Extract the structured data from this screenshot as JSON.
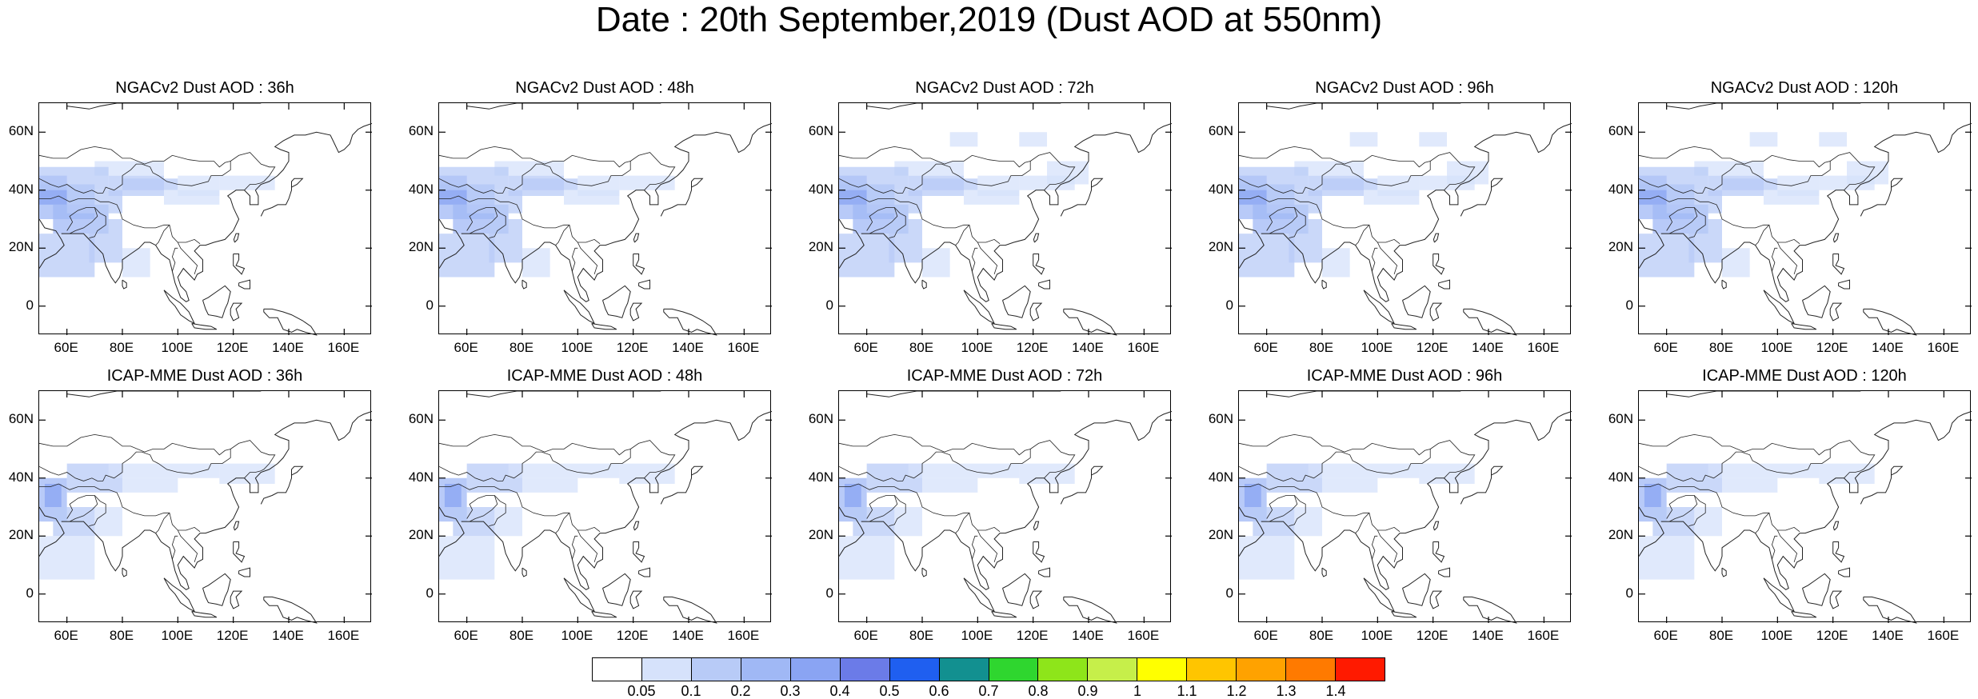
{
  "title": "Date : 20th September,2019 (Dust AOD at 550nm)",
  "panels": [
    {
      "title": "NGACv2 Dust AOD : 36h",
      "model": "NGACv2",
      "lead": "36h"
    },
    {
      "title": "NGACv2 Dust AOD : 48h",
      "model": "NGACv2",
      "lead": "48h"
    },
    {
      "title": "NGACv2 Dust AOD : 72h",
      "model": "NGACv2",
      "lead": "72h"
    },
    {
      "title": "NGACv2 Dust AOD : 96h",
      "model": "NGACv2",
      "lead": "96h"
    },
    {
      "title": "NGACv2 Dust AOD : 120h",
      "model": "NGACv2",
      "lead": "120h"
    },
    {
      "title": "ICAP-MME Dust AOD : 36h",
      "model": "ICAP-MME",
      "lead": "36h"
    },
    {
      "title": "ICAP-MME Dust AOD : 48h",
      "model": "ICAP-MME",
      "lead": "48h"
    },
    {
      "title": "ICAP-MME Dust AOD : 72h",
      "model": "ICAP-MME",
      "lead": "72h"
    },
    {
      "title": "ICAP-MME Dust AOD : 96h",
      "model": "ICAP-MME",
      "lead": "96h"
    },
    {
      "title": "ICAP-MME Dust AOD : 120h",
      "model": "ICAP-MME",
      "lead": "120h"
    }
  ],
  "lat_ticks": [
    "60N",
    "40N",
    "20N",
    "0"
  ],
  "lon_ticks": [
    "60E",
    "80E",
    "100E",
    "120E",
    "140E",
    "160E"
  ],
  "colorbar": {
    "labels": [
      "0.05",
      "0.1",
      "0.2",
      "0.3",
      "0.4",
      "0.5",
      "0.6",
      "0.7",
      "0.8",
      "0.9",
      "1",
      "1.1",
      "1.2",
      "1.3",
      "1.4"
    ],
    "colors": [
      "#ffffff",
      "#d6e2fb",
      "#b8cbf7",
      "#a0b8f5",
      "#8aa4f3",
      "#6b7be8",
      "#1f5ff0",
      "#129090",
      "#2fd62f",
      "#8ee51a",
      "#c6ef4a",
      "#ffff00",
      "#ffc500",
      "#ffa200",
      "#ff7a00",
      "#ff1a00"
    ]
  }
}
